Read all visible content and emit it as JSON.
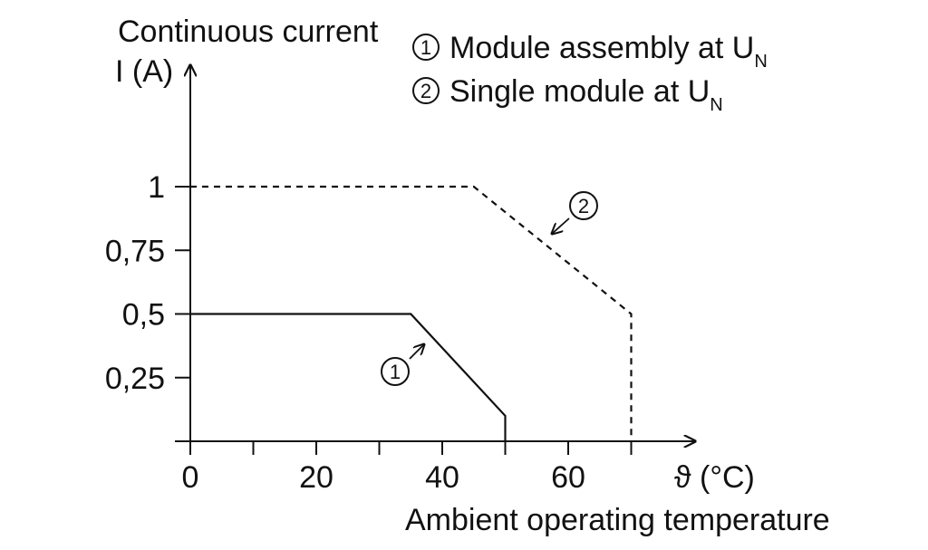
{
  "chart_data": {
    "type": "line",
    "ylabel_line1": "Continuous current",
    "ylabel_line2": "I (A)",
    "xlabel": "Ambient operating temperature",
    "x_unit_label": "ϑ (°C)",
    "xlim": [
      0,
      80
    ],
    "ylim": [
      0,
      1.2
    ],
    "x_ticks": [
      0,
      10,
      20,
      30,
      40,
      50,
      60,
      70
    ],
    "x_tick_labels": [
      {
        "value": 0,
        "label": "0"
      },
      {
        "value": 20,
        "label": "20"
      },
      {
        "value": 40,
        "label": "40"
      },
      {
        "value": 60,
        "label": "60"
      }
    ],
    "y_ticks": [
      {
        "value": 1,
        "label": "1"
      },
      {
        "value": 0.75,
        "label": "0,75"
      },
      {
        "value": 0.5,
        "label": "0,5"
      },
      {
        "value": 0.25,
        "label": "0,25"
      }
    ],
    "grid": false,
    "legend_position": "top-right",
    "series": [
      {
        "marker": "1",
        "name": "Module assembly at U",
        "name_sub": "N",
        "style": "solid",
        "x": [
          0,
          35,
          50,
          50
        ],
        "y": [
          0.5,
          0.5,
          0.1,
          0
        ]
      },
      {
        "marker": "2",
        "name": "Single module at U",
        "name_sub": "N",
        "style": "dashed",
        "x": [
          0,
          45,
          70,
          70
        ],
        "y": [
          1,
          1,
          0.5,
          0
        ]
      }
    ],
    "annotations": [
      {
        "marker": "1",
        "at_x": 37,
        "at_y": 0.3
      },
      {
        "marker": "2",
        "at_x": 57,
        "at_y": 0.82
      }
    ]
  }
}
